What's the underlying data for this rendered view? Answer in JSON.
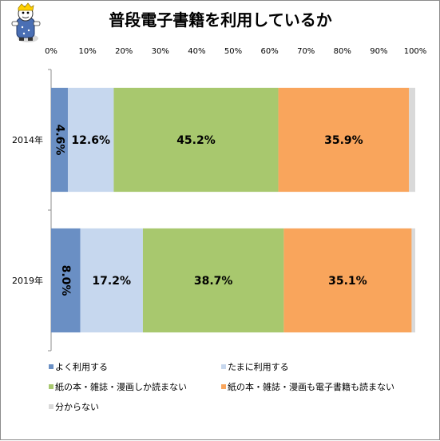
{
  "chart_data": {
    "type": "bar",
    "orientation": "horizontal",
    "stacked": true,
    "title": "普段電子書籍を利用しているか",
    "categories": [
      "2014年",
      "2019年"
    ],
    "series": [
      {
        "name": "よく利用する",
        "color": "#6a8fc4",
        "values": [
          4.6,
          8.0
        ],
        "labels": [
          "4.6%",
          "8.0%"
        ]
      },
      {
        "name": "たまに利用する",
        "color": "#c6d7ee",
        "values": [
          12.6,
          17.2
        ],
        "labels": [
          "12.6%",
          "17.2%"
        ]
      },
      {
        "name": "紙の本・雑誌・漫画しか読まない",
        "color": "#a8c86e",
        "values": [
          45.2,
          38.7
        ],
        "labels": [
          "45.2%",
          "38.7%"
        ]
      },
      {
        "name": "紙の本・雑誌・漫画も電子書籍も読まない",
        "color": "#f9a55c",
        "values": [
          35.9,
          35.1
        ],
        "labels": [
          "35.9%",
          "35.1%"
        ]
      },
      {
        "name": "分からない",
        "color": "#d9d9d9",
        "values": [
          1.7,
          1.0
        ],
        "labels": [
          "",
          ""
        ]
      }
    ],
    "xlim": [
      0,
      100
    ],
    "xticks": [
      "0%",
      "10%",
      "20%",
      "30%",
      "40%",
      "50%",
      "60%",
      "70%",
      "80%",
      "90%",
      "100%"
    ],
    "xlabel": "",
    "ylabel": "",
    "legend_position": "bottom",
    "grid": false
  },
  "mascot": {
    "icon": "mascot-illustration-icon"
  }
}
